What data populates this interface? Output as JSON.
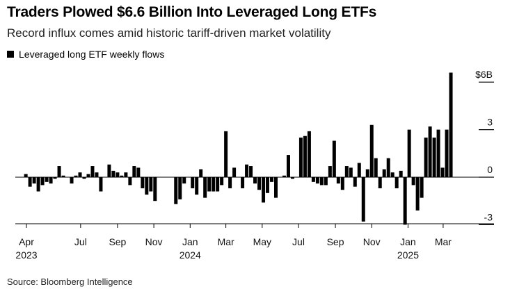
{
  "header": {
    "title": "Traders Plowed $6.6 Billion Into Leveraged Long ETFs",
    "subtitle": "Record influx comes amid historic tariff-driven market volatility"
  },
  "footer": {
    "source": "Source: Bloomberg Intelligence"
  },
  "colors": {
    "bar": "#000000",
    "axis": "#000000",
    "tick": "#000000"
  },
  "chart_data": {
    "type": "bar",
    "title": "Traders Plowed $6.6 Billion Into Leveraged Long ETFs",
    "subtitle": "Record influx comes amid historic tariff-driven market volatility",
    "legend": [
      "Leveraged long ETF weekly flows"
    ],
    "legend_position": "top-left",
    "ylabel": "",
    "xlabel": "",
    "ylim": [
      -3.6,
      6.6
    ],
    "yticks": [
      {
        "value": 6,
        "label": "$6B"
      },
      {
        "value": 3,
        "label": "3"
      },
      {
        "value": 0,
        "label": "0"
      },
      {
        "value": -3,
        "label": "-3"
      }
    ],
    "x_start": "2023-03-24",
    "x_end": "2025-04-11",
    "xticks": [
      {
        "date": "2023-04-01",
        "label": "Apr",
        "year": "2023"
      },
      {
        "date": "2023-07-01",
        "label": "Jul",
        "year": ""
      },
      {
        "date": "2023-09-01",
        "label": "Sep",
        "year": ""
      },
      {
        "date": "2023-11-01",
        "label": "Nov",
        "year": ""
      },
      {
        "date": "2024-01-01",
        "label": "Jan",
        "year": "2024"
      },
      {
        "date": "2024-03-01",
        "label": "Mar",
        "year": ""
      },
      {
        "date": "2024-05-01",
        "label": "May",
        "year": ""
      },
      {
        "date": "2024-07-01",
        "label": "Jul",
        "year": ""
      },
      {
        "date": "2024-09-01",
        "label": "Sep",
        "year": ""
      },
      {
        "date": "2024-11-01",
        "label": "Nov",
        "year": ""
      },
      {
        "date": "2025-01-01",
        "label": "Jan",
        "year": "2025"
      },
      {
        "date": "2025-03-01",
        "label": "Mar",
        "year": ""
      }
    ],
    "grid": false,
    "series": [
      {
        "name": "Leveraged long ETF weekly flows",
        "values": [
          {
            "x": "2023-03-31",
            "y": 0.2
          },
          {
            "x": "2023-04-07",
            "y": -0.6
          },
          {
            "x": "2023-04-14",
            "y": -0.4
          },
          {
            "x": "2023-04-21",
            "y": -0.9
          },
          {
            "x": "2023-04-28",
            "y": -0.5
          },
          {
            "x": "2023-05-05",
            "y": -0.3
          },
          {
            "x": "2023-05-12",
            "y": -0.4
          },
          {
            "x": "2023-05-19",
            "y": -0.1
          },
          {
            "x": "2023-05-26",
            "y": 0.7
          },
          {
            "x": "2023-06-02",
            "y": 0.1
          },
          {
            "x": "2023-06-09",
            "y": 0.0
          },
          {
            "x": "2023-06-16",
            "y": -0.4
          },
          {
            "x": "2023-06-23",
            "y": 0.1
          },
          {
            "x": "2023-06-30",
            "y": 0.3
          },
          {
            "x": "2023-07-07",
            "y": -0.1
          },
          {
            "x": "2023-07-14",
            "y": 0.2
          },
          {
            "x": "2023-07-21",
            "y": 0.7
          },
          {
            "x": "2023-07-28",
            "y": 0.3
          },
          {
            "x": "2023-08-04",
            "y": -0.9
          },
          {
            "x": "2023-08-11",
            "y": 0.0
          },
          {
            "x": "2023-08-18",
            "y": 0.8
          },
          {
            "x": "2023-08-25",
            "y": 0.4
          },
          {
            "x": "2023-09-01",
            "y": 0.3
          },
          {
            "x": "2023-09-08",
            "y": 0.1
          },
          {
            "x": "2023-09-15",
            "y": 0.3
          },
          {
            "x": "2023-09-22",
            "y": -0.5
          },
          {
            "x": "2023-09-29",
            "y": 0.7
          },
          {
            "x": "2023-10-06",
            "y": 0.6
          },
          {
            "x": "2023-10-13",
            "y": -0.7
          },
          {
            "x": "2023-10-20",
            "y": -1.1
          },
          {
            "x": "2023-10-27",
            "y": -0.9
          },
          {
            "x": "2023-11-03",
            "y": -1.5
          },
          {
            "x": "2023-11-10",
            "y": 0.0
          },
          {
            "x": "2023-11-17",
            "y": 0.0
          },
          {
            "x": "2023-11-24",
            "y": 0.0
          },
          {
            "x": "2023-12-01",
            "y": 0.0
          },
          {
            "x": "2023-12-08",
            "y": -1.7
          },
          {
            "x": "2023-12-15",
            "y": -1.4
          },
          {
            "x": "2023-12-22",
            "y": -0.4
          },
          {
            "x": "2023-12-29",
            "y": 0.0
          },
          {
            "x": "2024-01-05",
            "y": -0.7
          },
          {
            "x": "2024-01-12",
            "y": -1.1
          },
          {
            "x": "2024-01-19",
            "y": 0.5
          },
          {
            "x": "2024-01-26",
            "y": -1.3
          },
          {
            "x": "2024-02-02",
            "y": -0.9
          },
          {
            "x": "2024-02-09",
            "y": -0.9
          },
          {
            "x": "2024-02-16",
            "y": -0.9
          },
          {
            "x": "2024-02-23",
            "y": -0.5
          },
          {
            "x": "2024-03-01",
            "y": 2.9
          },
          {
            "x": "2024-03-08",
            "y": -0.7
          },
          {
            "x": "2024-03-15",
            "y": 0.6
          },
          {
            "x": "2024-03-22",
            "y": 0.0
          },
          {
            "x": "2024-03-29",
            "y": -0.7
          },
          {
            "x": "2024-04-05",
            "y": 0.8
          },
          {
            "x": "2024-04-12",
            "y": 0.7
          },
          {
            "x": "2024-04-19",
            "y": -0.4
          },
          {
            "x": "2024-04-26",
            "y": -0.8
          },
          {
            "x": "2024-05-03",
            "y": -1.6
          },
          {
            "x": "2024-05-10",
            "y": -1.0
          },
          {
            "x": "2024-05-17",
            "y": -0.3
          },
          {
            "x": "2024-05-24",
            "y": -1.3
          },
          {
            "x": "2024-05-31",
            "y": 0.0
          },
          {
            "x": "2024-06-07",
            "y": 0.1
          },
          {
            "x": "2024-06-14",
            "y": 1.4
          },
          {
            "x": "2024-06-21",
            "y": -0.1
          },
          {
            "x": "2024-06-28",
            "y": 0.0
          },
          {
            "x": "2024-07-05",
            "y": 2.5
          },
          {
            "x": "2024-07-12",
            "y": 2.6
          },
          {
            "x": "2024-07-19",
            "y": 2.9
          },
          {
            "x": "2024-07-26",
            "y": -0.3
          },
          {
            "x": "2024-08-02",
            "y": -0.4
          },
          {
            "x": "2024-08-09",
            "y": -0.5
          },
          {
            "x": "2024-08-16",
            "y": -0.5
          },
          {
            "x": "2024-08-23",
            "y": 0.7
          },
          {
            "x": "2024-08-30",
            "y": 2.3
          },
          {
            "x": "2024-09-06",
            "y": -0.4
          },
          {
            "x": "2024-09-13",
            "y": -0.8
          },
          {
            "x": "2024-09-20",
            "y": 0.7
          },
          {
            "x": "2024-09-27",
            "y": 0.6
          },
          {
            "x": "2024-10-04",
            "y": -0.6
          },
          {
            "x": "2024-10-11",
            "y": 0.9
          },
          {
            "x": "2024-10-18",
            "y": -2.8
          },
          {
            "x": "2024-10-25",
            "y": 0.5
          },
          {
            "x": "2024-11-01",
            "y": 3.3
          },
          {
            "x": "2024-11-08",
            "y": 1.2
          },
          {
            "x": "2024-11-15",
            "y": -0.7
          },
          {
            "x": "2024-11-22",
            "y": 0.5
          },
          {
            "x": "2024-11-29",
            "y": 1.2
          },
          {
            "x": "2024-12-06",
            "y": 0.3
          },
          {
            "x": "2024-12-13",
            "y": -0.7
          },
          {
            "x": "2024-12-20",
            "y": 0.4
          },
          {
            "x": "2024-12-27",
            "y": -3.0
          },
          {
            "x": "2025-01-03",
            "y": 3.0
          },
          {
            "x": "2025-01-10",
            "y": -0.5
          },
          {
            "x": "2025-01-17",
            "y": -2.1
          },
          {
            "x": "2025-01-24",
            "y": -1.3
          },
          {
            "x": "2025-01-31",
            "y": 2.5
          },
          {
            "x": "2025-02-07",
            "y": 3.2
          },
          {
            "x": "2025-02-14",
            "y": 2.5
          },
          {
            "x": "2025-02-21",
            "y": 3.0
          },
          {
            "x": "2025-02-28",
            "y": 0.6
          },
          {
            "x": "2025-03-07",
            "y": 3.0
          },
          {
            "x": "2025-03-14",
            "y": 6.6
          }
        ]
      }
    ]
  }
}
